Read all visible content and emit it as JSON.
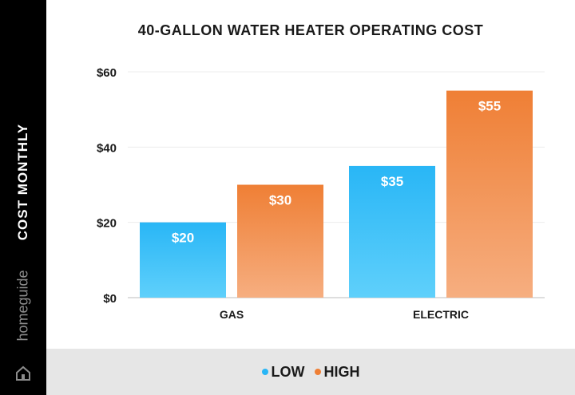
{
  "chart_data": {
    "type": "bar",
    "title": "40-GALLON WATER HEATER OPERATING COST",
    "ylabel": "COST MONTHLY",
    "xlabel": "",
    "categories": [
      "GAS",
      "ELECTRIC"
    ],
    "series": [
      {
        "name": "LOW",
        "values": [
          20,
          35
        ],
        "labels": [
          "$20",
          "$35"
        ],
        "color": "#29b6f6",
        "color_light": "#5fd0fb"
      },
      {
        "name": "HIGH",
        "values": [
          30,
          55
        ],
        "labels": [
          "$30",
          "$55"
        ],
        "color": "#ef7f35",
        "color_light": "#f6ae80"
      }
    ],
    "yticks": [
      0,
      20,
      40,
      60
    ],
    "ytick_labels": [
      "$0",
      "$20",
      "$40",
      "$60"
    ],
    "ylim": [
      0,
      60
    ],
    "grid": true,
    "legend_position": "bottom"
  },
  "brand": {
    "name": "homeguide",
    "icon": "house-icon"
  }
}
